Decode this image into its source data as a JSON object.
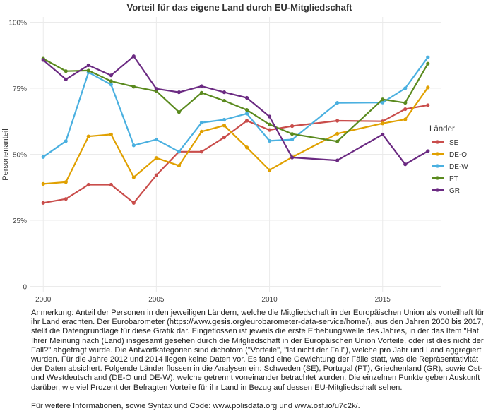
{
  "chart_data": {
    "type": "line",
    "title": "Vorteil für das eigene Land durch EU-Mitgliedschaft",
    "xlabel": "",
    "ylabel": "Personenanteil",
    "xlim": [
      1999.4,
      2017.6
    ],
    "ylim": [
      -0.02,
      1.02
    ],
    "x_ticks": [
      2000,
      2005,
      2010,
      2015
    ],
    "x_tick_labels": [
      "2000",
      "2005",
      "2010",
      "2015"
    ],
    "y_ticks": [
      0,
      0.25,
      0.5,
      0.75,
      1.0
    ],
    "y_tick_labels": [
      "0",
      "25%",
      "50%",
      "75%",
      "100%"
    ],
    "grid": true,
    "legend_title": "Länder",
    "legend_position": "right",
    "series": [
      {
        "name": "SE",
        "color": "#c94d4b",
        "x": [
          2000,
          2001,
          2002,
          2003,
          2004,
          2005,
          2006,
          2007,
          2008,
          2009,
          2010,
          2011,
          2013,
          2015,
          2016,
          2017
        ],
        "y": [
          0.316,
          0.331,
          0.385,
          0.385,
          0.316,
          0.421,
          0.51,
          0.51,
          0.564,
          0.627,
          0.592,
          0.607,
          0.627,
          0.625,
          0.671,
          0.686
        ]
      },
      {
        "name": "DE-O",
        "color": "#e0a000",
        "x": [
          2000,
          2001,
          2002,
          2003,
          2004,
          2005,
          2006,
          2007,
          2008,
          2009,
          2010,
          2011,
          2013,
          2015,
          2016,
          2017
        ],
        "y": [
          0.388,
          0.395,
          0.568,
          0.575,
          0.413,
          0.486,
          0.457,
          0.586,
          0.609,
          0.526,
          0.44,
          0.489,
          0.578,
          0.617,
          0.632,
          0.753
        ]
      },
      {
        "name": "DE-W",
        "color": "#4ab0e0",
        "x": [
          2000,
          2001,
          2002,
          2003,
          2004,
          2005,
          2006,
          2007,
          2008,
          2009,
          2010,
          2011,
          2013,
          2015,
          2016,
          2017
        ],
        "y": [
          0.49,
          0.55,
          0.81,
          0.764,
          0.534,
          0.556,
          0.51,
          0.62,
          0.631,
          0.654,
          0.551,
          0.556,
          0.695,
          0.696,
          0.75,
          0.867
        ]
      },
      {
        "name": "PT",
        "color": "#5a8a1e",
        "x": [
          2000,
          2001,
          2002,
          2003,
          2004,
          2005,
          2006,
          2007,
          2008,
          2009,
          2010,
          2011,
          2013,
          2015,
          2016,
          2017
        ],
        "y": [
          0.862,
          0.815,
          0.817,
          0.777,
          0.756,
          0.739,
          0.66,
          0.733,
          0.703,
          0.668,
          0.613,
          0.577,
          0.549,
          0.708,
          0.695,
          0.843
        ]
      },
      {
        "name": "GR",
        "color": "#6b2a82",
        "x": [
          2000,
          2001,
          2002,
          2003,
          2004,
          2005,
          2006,
          2007,
          2008,
          2009,
          2010,
          2011,
          2013,
          2015,
          2016,
          2017
        ],
        "y": [
          0.857,
          0.784,
          0.837,
          0.799,
          0.871,
          0.748,
          0.735,
          0.758,
          0.735,
          0.714,
          0.643,
          0.488,
          0.477,
          0.575,
          0.462,
          0.512
        ]
      }
    ]
  },
  "footnote": {
    "text": "Anmerkung: Anteil der Personen in den jeweiligen Ländern, welche die Mitgliedschaft in der Europäischen Union als vorteilhaft für ihr Land erachten. Der Eurobarometer (https://www.gesis.org/eurobarometer-data-service/home/), aus den Jahren 2000 bis 2017, stellt die Datengrundlage für diese Grafik dar. Eingeflossen ist jeweils die erste Erhebungswelle des Jahres, in der das Item \"Hat Ihrer Meinung nach (Land) insgesamt gesehen durch die Mitgliedschaft in der Europäischen Union Vorteile, oder ist dies nicht der Fall?\" abgefragt wurde. Die Antwortkategorien sind dichotom (\"Vorteile\", \"Ist nicht der Fall\"), welche pro Jahr und Land aggregiert wurden. Für die Jahre 2012 und 2014 liegen keine Daten vor. Es fand eine Gewichtung der Fälle statt, was die Repräsentativität der Daten absichert. Folgende Länder flossen in die Analysen ein: Schweden (SE), Portugal (PT), Griechenland (GR), sowie Ost- und Westdeutschland (DE-O und DE-W), welche getrennt voneinander betrachtet wurden.  Die einzelnen Punkte geben Auskunft darüber, wie viel Prozent der Befragten Vorteile für ihr Land in Bezug auf dessen EU-Mitgliedschaft sehen.",
    "more_info": "Für weitere Informationen, sowie Syntax und Code: www.polisdata.org und www.osf.io/u7c2k/."
  }
}
